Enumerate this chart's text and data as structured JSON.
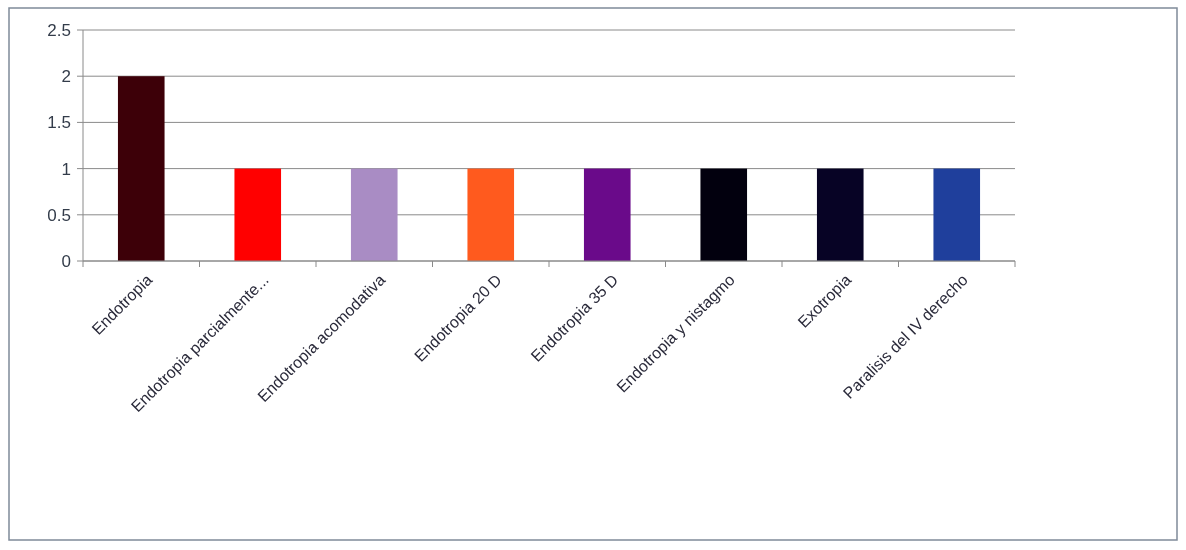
{
  "chart_data": {
    "type": "bar",
    "categories": [
      "Endotropia",
      "Endotropia parcialmente...",
      "Endotropia acomodativa",
      "Endotropia 20 D",
      "Endotropia 35 D",
      "Endotropia y nistagmo",
      "Exotropia",
      "Paralisis del IV derecho"
    ],
    "values": [
      2,
      1,
      1,
      1,
      1,
      1,
      1,
      1
    ],
    "colors": [
      "#3d0008",
      "#ff0000",
      "#a98cc4",
      "#ff5a1e",
      "#6a0a8a",
      "#02000e",
      "#070325",
      "#1f3f9c"
    ],
    "ylim": [
      0,
      2.5
    ],
    "yticks": [
      0,
      0.5,
      1,
      1.5,
      2,
      2.5
    ],
    "grid": "y"
  }
}
